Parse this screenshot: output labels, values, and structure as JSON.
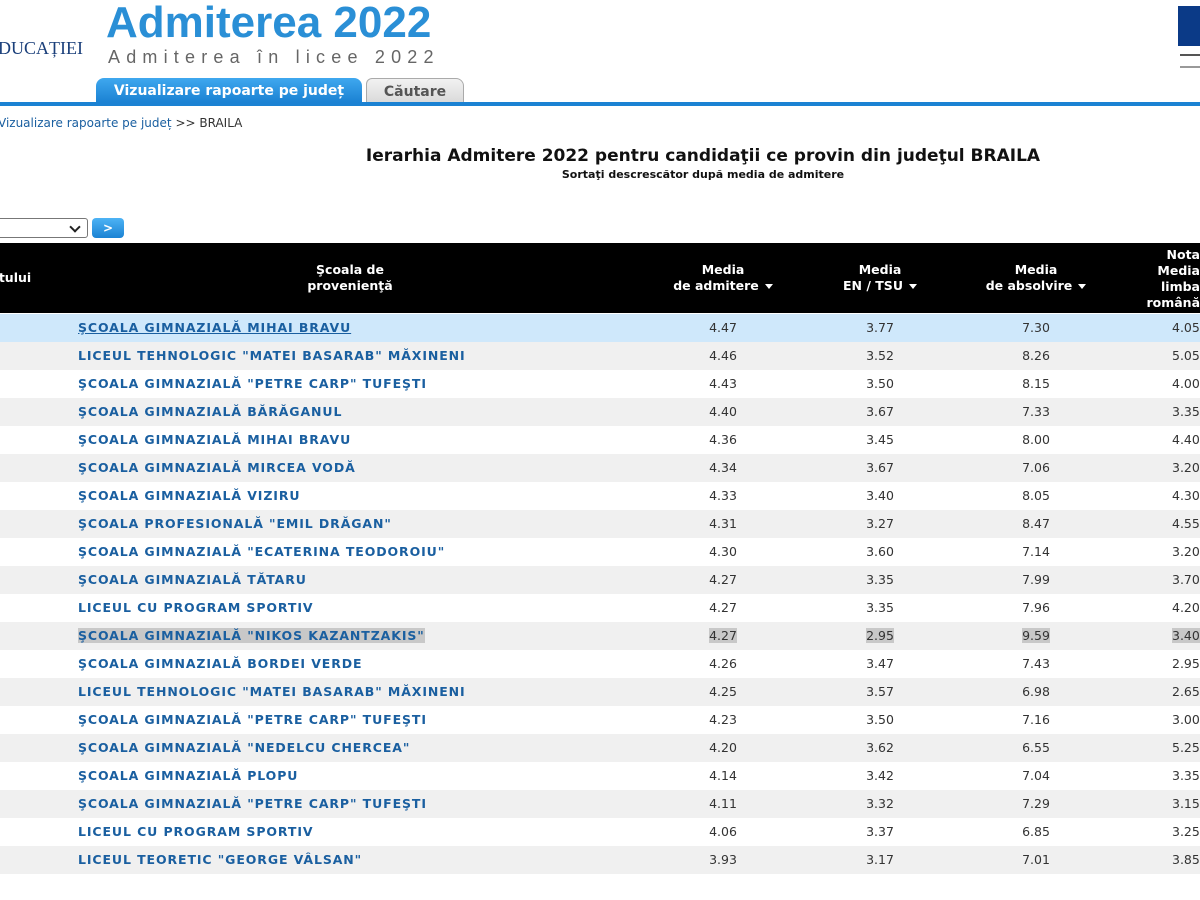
{
  "header": {
    "ministry": "DUCAȚIEI",
    "title": "Admiterea 2022",
    "subtitle": "Admiterea în licee 2022"
  },
  "tabs": [
    "Vizualizare rapoarte pe județ",
    "Căutare"
  ],
  "breadcrumb": {
    "link": "Vizualizare rapoarte pe județ",
    "rest": ">> BRAILA"
  },
  "report": {
    "title": "Ierarhia Admitere 2022 pentru candidaţii ce provin din judeţul BRAILA",
    "subtitle": "Sortaţi descrescător după media de admitere"
  },
  "controls": {
    "button": ">"
  },
  "table": {
    "columns": [
      [
        "tului"
      ],
      [
        "Şcoala de",
        "provenienţă"
      ],
      [
        "Media",
        "de admitere"
      ],
      [
        "Media",
        "EN / TSU"
      ],
      [
        "Media",
        "de absolvire"
      ],
      [
        "Nota",
        "Media",
        "limba",
        "română"
      ]
    ],
    "rows": [
      [
        "ŞCOALA GIMNAZIALĂ MIHAI BRAVU",
        "4.47",
        "3.77",
        "7.30",
        "4.05"
      ],
      [
        "LICEUL TEHNOLOGIC \"MATEI BASARAB\" MĂXINENI",
        "4.46",
        "3.52",
        "8.26",
        "5.05"
      ],
      [
        "ŞCOALA GIMNAZIALĂ \"PETRE CARP\" TUFEŞTI",
        "4.43",
        "3.50",
        "8.15",
        "4.00"
      ],
      [
        "ŞCOALA GIMNAZIALĂ BĂRĂGANUL",
        "4.40",
        "3.67",
        "7.33",
        "3.35"
      ],
      [
        "ŞCOALA GIMNAZIALĂ MIHAI BRAVU",
        "4.36",
        "3.45",
        "8.00",
        "4.40"
      ],
      [
        "ŞCOALA GIMNAZIALĂ MIRCEA VODĂ",
        "4.34",
        "3.67",
        "7.06",
        "3.20"
      ],
      [
        "ŞCOALA GIMNAZIALĂ VIZIRU",
        "4.33",
        "3.40",
        "8.05",
        "4.30"
      ],
      [
        "ŞCOALA PROFESIONALĂ \"EMIL DRĂGAN\"",
        "4.31",
        "3.27",
        "8.47",
        "4.55"
      ],
      [
        "ŞCOALA GIMNAZIALĂ \"ECATERINA TEODOROIU\"",
        "4.30",
        "3.60",
        "7.14",
        "3.20"
      ],
      [
        "ŞCOALA GIMNAZIALĂ TĂTARU",
        "4.27",
        "3.35",
        "7.99",
        "3.70"
      ],
      [
        "LICEUL CU PROGRAM SPORTIV",
        "4.27",
        "3.35",
        "7.96",
        "4.20"
      ],
      [
        "ŞCOALA GIMNAZIALĂ \"NIKOS KAZANTZAKIS\"",
        "4.27",
        "2.95",
        "9.59",
        "3.40"
      ],
      [
        "ŞCOALA GIMNAZIALĂ BORDEI VERDE",
        "4.26",
        "3.47",
        "7.43",
        "2.95"
      ],
      [
        "LICEUL TEHNOLOGIC \"MATEI BASARAB\" MĂXINENI",
        "4.25",
        "3.57",
        "6.98",
        "2.65"
      ],
      [
        "ŞCOALA GIMNAZIALĂ \"PETRE CARP\" TUFEŞTI",
        "4.23",
        "3.50",
        "7.16",
        "3.00"
      ],
      [
        "ŞCOALA GIMNAZIALĂ \"NEDELCU CHERCEA\"",
        "4.20",
        "3.62",
        "6.55",
        "5.25"
      ],
      [
        "ŞCOALA GIMNAZIALĂ PLOPU",
        "4.14",
        "3.42",
        "7.04",
        "3.35"
      ],
      [
        "ŞCOALA GIMNAZIALĂ \"PETRE CARP\" TUFEŞTI",
        "4.11",
        "3.32",
        "7.29",
        "3.15"
      ],
      [
        "LICEUL CU PROGRAM SPORTIV",
        "4.06",
        "3.37",
        "6.85",
        "3.25"
      ],
      [
        "LICEUL TEORETIC \"GEORGE VÂLSAN\"",
        "3.93",
        "3.17",
        "7.01",
        "3.85"
      ]
    ]
  }
}
